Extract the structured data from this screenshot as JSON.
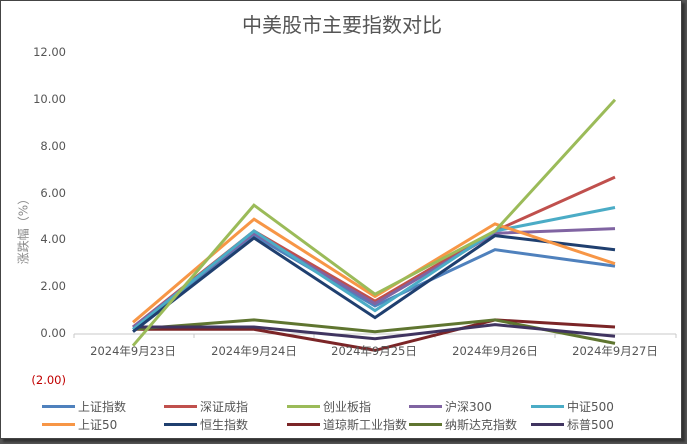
{
  "chart_data": {
    "type": "line",
    "title": "中美股市主要指数对比",
    "xlabel": "",
    "ylabel": "涨跌幅（%）",
    "ylim": [
      -2,
      12
    ],
    "y_ticks": [
      "12.00",
      "10.00",
      "8.00",
      "6.00",
      "4.00",
      "2.00",
      "0.00",
      "(2.00)"
    ],
    "grid": false,
    "legend_position": "bottom",
    "categories": [
      "2024年9月23日",
      "2024年9月24日",
      "2024年9月25日",
      "2024年9月26日",
      "2024年9月27日"
    ],
    "series": [
      {
        "name": "上证指数",
        "color": "#4F81BD",
        "values": [
          0.2,
          4.2,
          1.2,
          3.6,
          2.9
        ]
      },
      {
        "name": "深证成指",
        "color": "#C0504D",
        "values": [
          0.3,
          4.4,
          1.4,
          4.4,
          6.7
        ]
      },
      {
        "name": "创业板指",
        "color": "#9BBB59",
        "values": [
          -0.5,
          5.5,
          1.7,
          4.4,
          10.0
        ]
      },
      {
        "name": "沪深300",
        "color": "#8064A2",
        "values": [
          0.3,
          4.3,
          1.3,
          4.3,
          4.5
        ]
      },
      {
        "name": "中证500",
        "color": "#4BACC6",
        "values": [
          0.2,
          4.4,
          1.0,
          4.4,
          5.4
        ]
      },
      {
        "name": "上证50",
        "color": "#F79646",
        "values": [
          0.5,
          4.9,
          1.6,
          4.7,
          3.0
        ]
      },
      {
        "name": "恒生指数",
        "color": "#1F3F6F",
        "values": [
          0.1,
          4.1,
          0.7,
          4.2,
          3.6
        ]
      },
      {
        "name": "道琼斯工业指数",
        "color": "#7B2527",
        "values": [
          0.2,
          0.2,
          -0.7,
          0.6,
          0.3
        ]
      },
      {
        "name": "纳斯达克指数",
        "color": "#5F7530",
        "values": [
          0.2,
          0.6,
          0.1,
          0.6,
          -0.4
        ]
      },
      {
        "name": "标普500",
        "color": "#403460",
        "values": [
          0.3,
          0.3,
          -0.2,
          0.4,
          -0.1
        ]
      }
    ]
  }
}
